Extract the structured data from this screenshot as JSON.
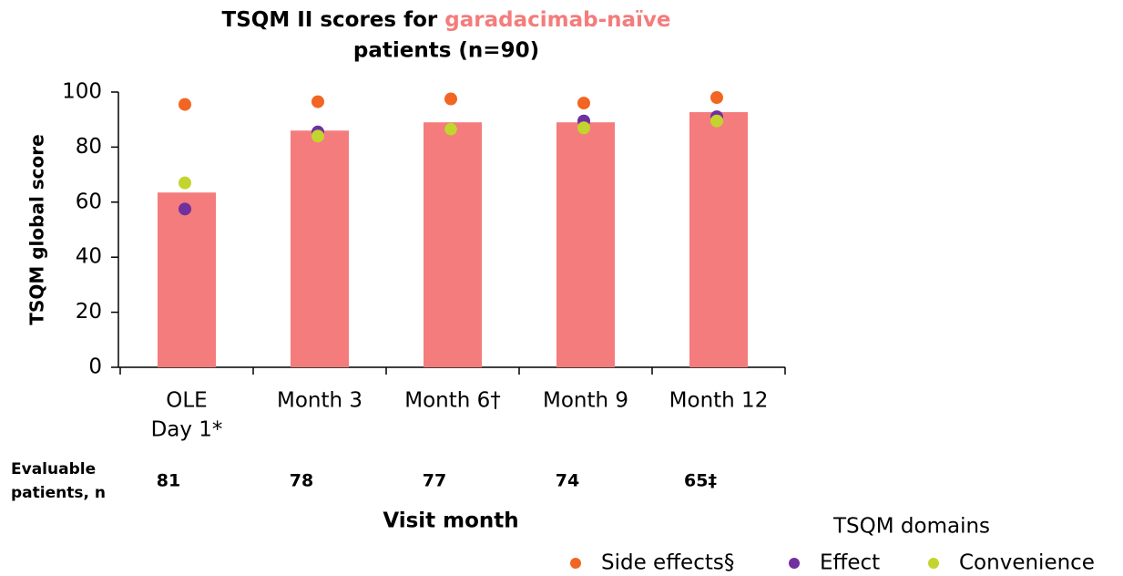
{
  "chart_data": {
    "type": "bar",
    "title": [
      "TSQM II scores for ",
      "garadacimab-naïve",
      "patients (n=90)"
    ],
    "title_highlight_color": "#f47c7c",
    "categories": [
      [
        "OLE",
        "Day 1*"
      ],
      [
        "Month 3"
      ],
      [
        "Month 6†"
      ],
      [
        "Month 9"
      ],
      [
        "Month 12"
      ]
    ],
    "values": [
      63.5,
      86,
      89,
      89,
      92.7
    ],
    "color": "#f47c7c",
    "series": [
      {
        "name": "Side effects§",
        "color": "#f26522",
        "values": [
          95.5,
          96.5,
          97.5,
          96,
          98
        ]
      },
      {
        "name": "Effect",
        "color": "#7030a0",
        "values": [
          57.5,
          85.5,
          86.5,
          89.5,
          91
        ]
      },
      {
        "name": "Convenience",
        "color": "#c4d42e",
        "values": [
          67,
          84,
          86.5,
          87,
          89.5
        ]
      }
    ],
    "ylim": [
      0,
      100
    ],
    "yticks": [
      0,
      20,
      40,
      60,
      80,
      100
    ],
    "ylabel": "TSQM global score",
    "xlabel": "Visit month",
    "row_label": [
      "Evaluable",
      "patients, n"
    ],
    "evaluable_n": [
      "81",
      "78",
      "77",
      "74",
      "65‡"
    ],
    "legend_title": "TSQM domains",
    "legend": "bottom-right"
  }
}
